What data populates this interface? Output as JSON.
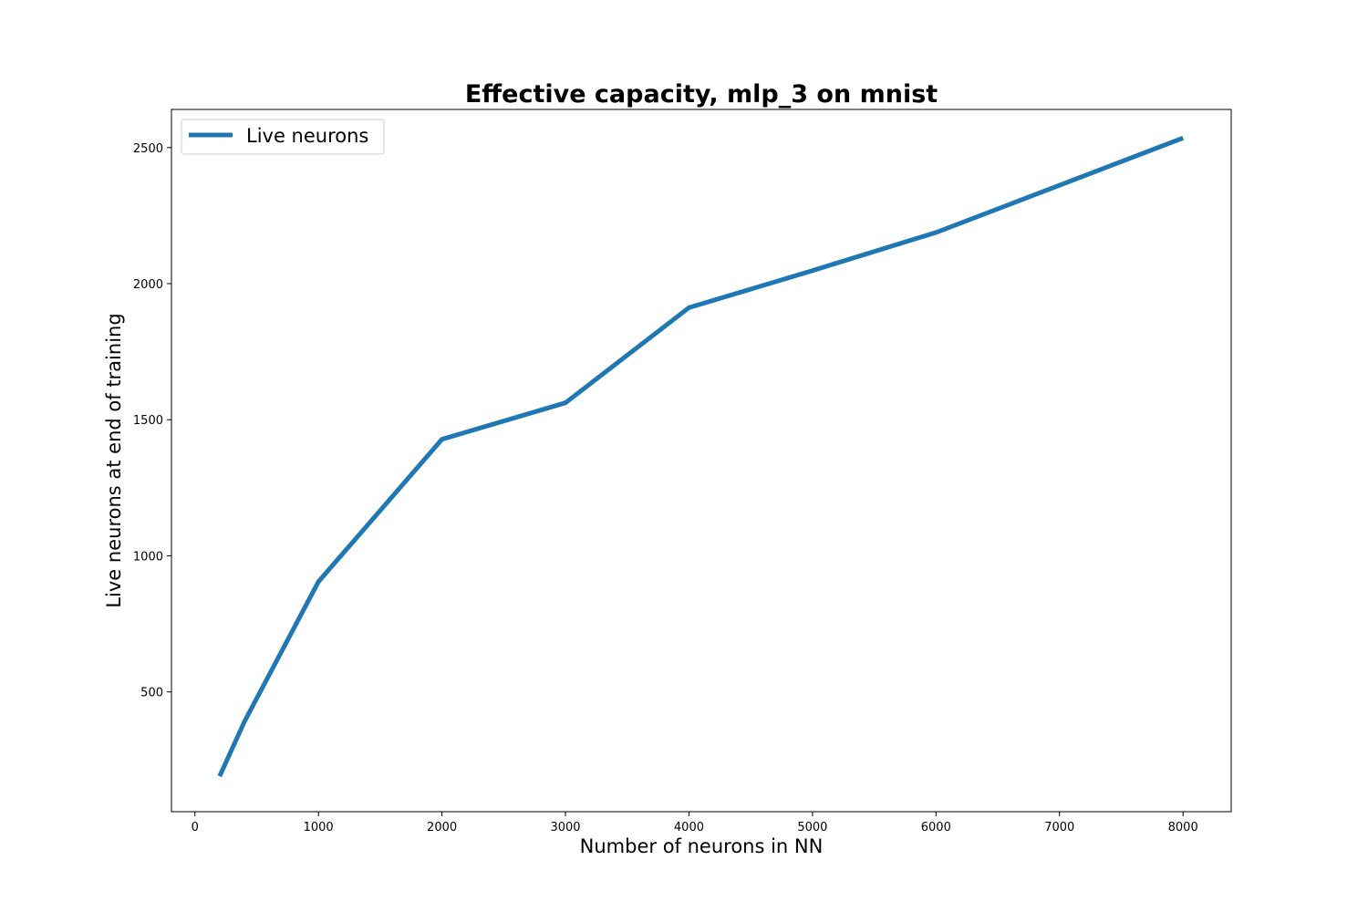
{
  "chart_data": {
    "type": "line",
    "title": "Effective capacity, mlp_3 on mnist",
    "xlabel": "Number of neurons in NN",
    "ylabel": "Live neurons at end of training",
    "xlim": [
      -190,
      8390
    ],
    "ylim": [
      60,
      2640
    ],
    "xticks": [
      0,
      1000,
      2000,
      3000,
      4000,
      5000,
      6000,
      7000,
      8000
    ],
    "yticks": [
      500,
      1000,
      1500,
      2000,
      2500
    ],
    "grid": false,
    "legend_position": "upper left",
    "series": [
      {
        "name": "Live neurons",
        "color": "#1f77b4",
        "x": [
          200,
          400,
          1000,
          2000,
          3000,
          4000,
          5000,
          6000,
          8000
        ],
        "y": [
          190,
          390,
          905,
          1428,
          1562,
          1912,
          2048,
          2188,
          2535
        ]
      }
    ]
  }
}
